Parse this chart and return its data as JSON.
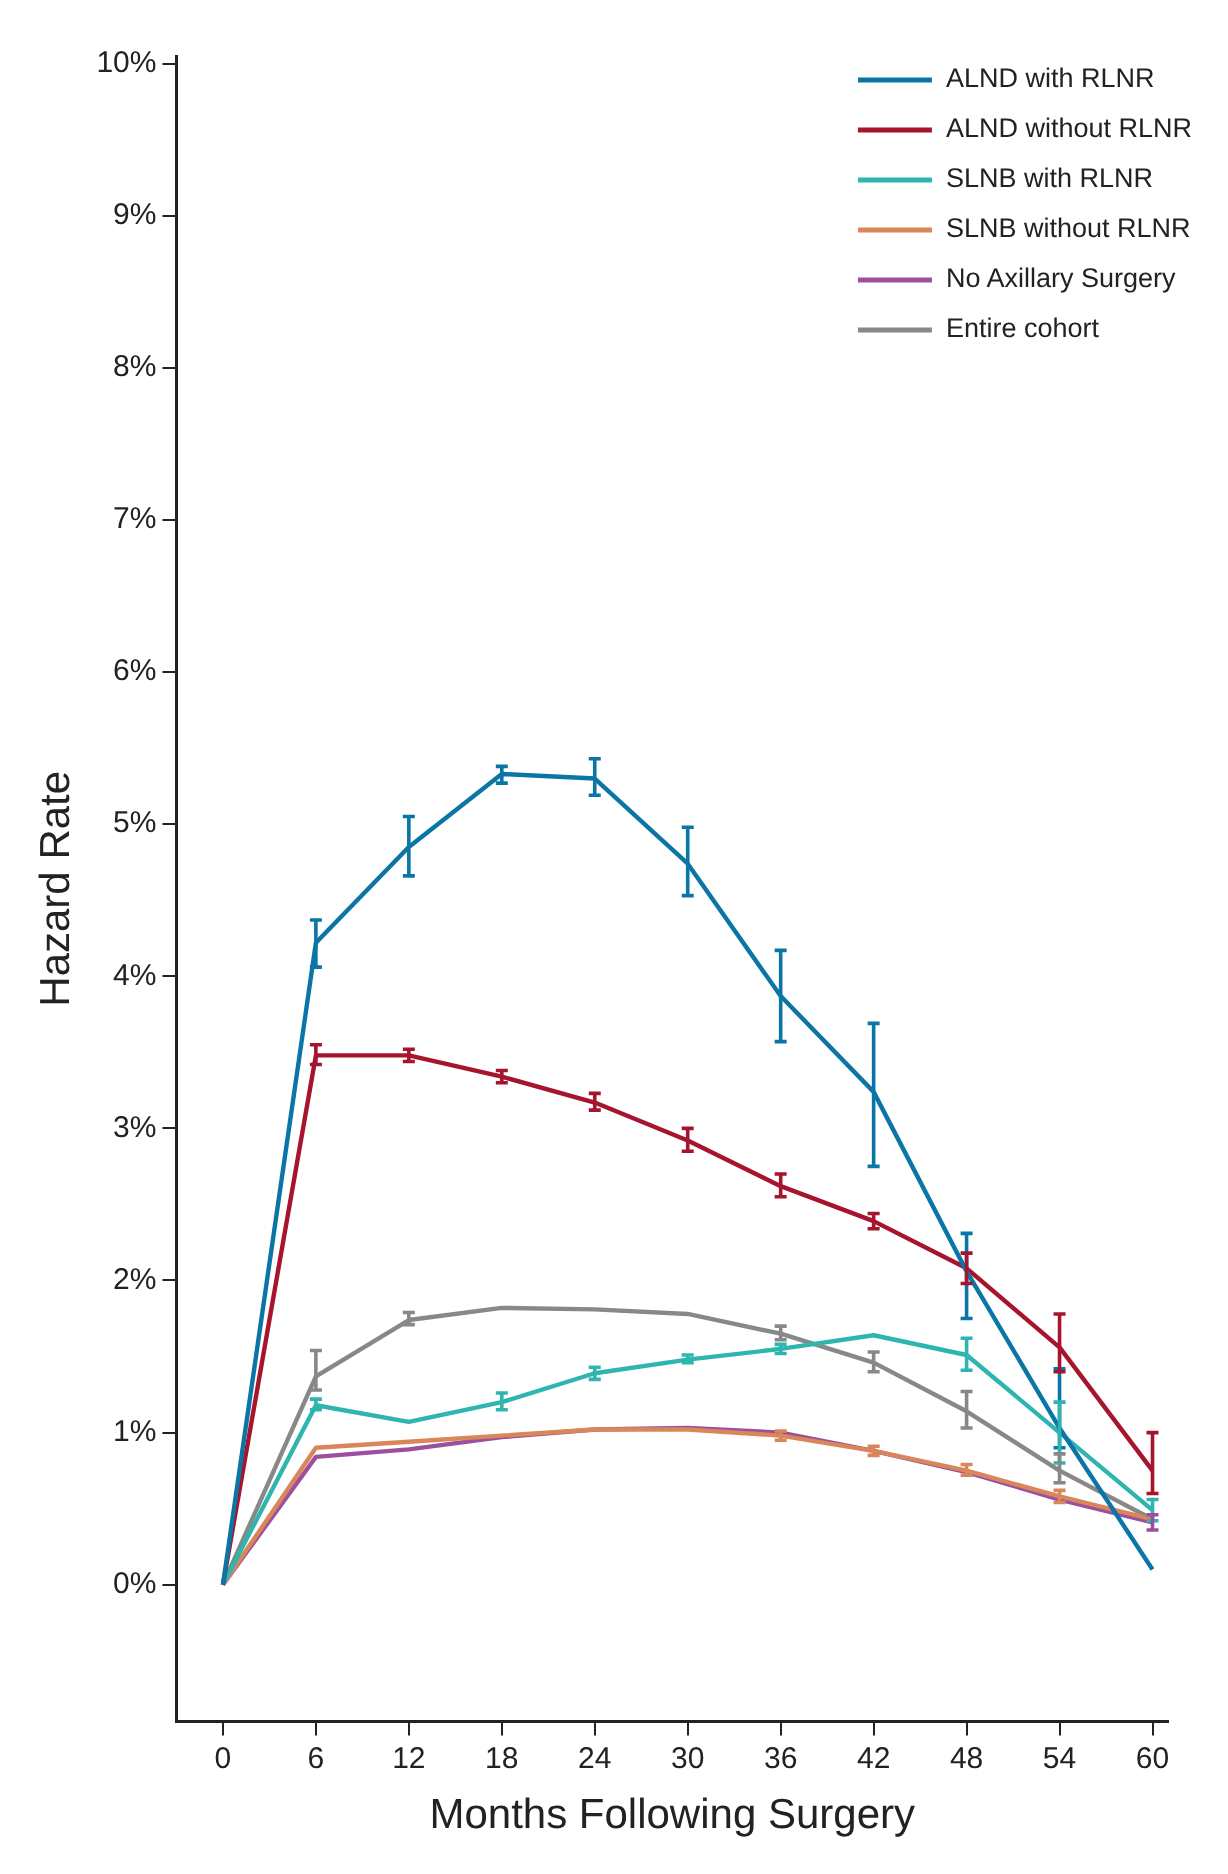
{
  "chart_data": {
    "type": "line",
    "xlabel": "Months Following Surgery",
    "ylabel": "Hazard Rate",
    "x": [
      0,
      6,
      12,
      18,
      24,
      30,
      36,
      42,
      48,
      54,
      60
    ],
    "xlim": [
      -3,
      61
    ],
    "xticks": [
      0,
      6,
      12,
      18,
      24,
      30,
      36,
      42,
      48,
      54,
      60
    ],
    "ylim": [
      -0.9,
      10.05
    ],
    "yticks": [
      {
        "value": 0,
        "label": "0%"
      },
      {
        "value": 1,
        "label": "1%"
      },
      {
        "value": 2,
        "label": "2%"
      },
      {
        "value": 3,
        "label": "3%"
      },
      {
        "value": 4,
        "label": "4%"
      },
      {
        "value": 5,
        "label": "5%"
      },
      {
        "value": 6,
        "label": "6%"
      },
      {
        "value": 7,
        "label": "7%"
      },
      {
        "value": 8,
        "label": "8%"
      },
      {
        "value": 9,
        "label": "9%"
      },
      {
        "value": 10,
        "label": "10%"
      }
    ],
    "grid": false,
    "legend": "top right",
    "marker": "none",
    "line_style": "solid",
    "series": [
      {
        "name": "ALND with RLNR",
        "color": "#0b76a6",
        "values": [
          0,
          4.22,
          4.85,
          5.33,
          5.3,
          4.74,
          3.87,
          3.24,
          2.06,
          1.03,
          0.1
        ],
        "errors": [
          null,
          [
            4.06,
            4.37
          ],
          [
            4.66,
            5.05
          ],
          [
            5.27,
            5.38
          ],
          [
            5.19,
            5.43
          ],
          [
            4.53,
            4.98
          ],
          [
            3.57,
            4.17
          ],
          [
            2.75,
            3.69
          ],
          [
            1.75,
            2.31
          ],
          [
            0.9,
            1.42
          ],
          null
        ]
      },
      {
        "name": "ALND without RLNR",
        "color": "#a6142e",
        "values": [
          0,
          3.48,
          3.48,
          3.34,
          3.17,
          2.92,
          2.62,
          2.39,
          2.08,
          1.56,
          0.75
        ],
        "errors": [
          null,
          [
            3.42,
            3.55
          ],
          [
            3.44,
            3.52
          ],
          [
            3.3,
            3.38
          ],
          [
            3.12,
            3.23
          ],
          [
            2.85,
            3.0
          ],
          [
            2.55,
            2.7
          ],
          [
            2.34,
            2.44
          ],
          [
            1.98,
            2.18
          ],
          [
            1.4,
            1.78
          ],
          [
            0.6,
            1.0
          ]
        ]
      },
      {
        "name": "SLNB with RLNR",
        "color": "#2fb5b0",
        "values": [
          0,
          1.18,
          1.07,
          1.2,
          1.39,
          1.48,
          1.55,
          1.64,
          1.51,
          1.0,
          0.49
        ],
        "errors": [
          null,
          [
            1.15,
            1.22
          ],
          null,
          [
            1.15,
            1.26
          ],
          [
            1.35,
            1.43
          ],
          [
            1.46,
            1.51
          ],
          [
            1.52,
            1.58
          ],
          null,
          [
            1.41,
            1.62
          ],
          [
            0.8,
            1.2
          ],
          [
            0.42,
            0.56
          ]
        ]
      },
      {
        "name": "SLNB without RLNR",
        "color": "#d9865a",
        "values": [
          0,
          0.9,
          0.94,
          0.98,
          1.02,
          1.02,
          0.98,
          0.88,
          0.75,
          0.58,
          0.43
        ],
        "errors": [
          null,
          null,
          null,
          null,
          null,
          null,
          [
            0.95,
            1.01
          ],
          [
            0.85,
            0.91
          ],
          [
            0.72,
            0.79
          ],
          [
            0.54,
            0.62
          ],
          null
        ]
      },
      {
        "name": "No Axillary Surgery",
        "color": "#9b4f9e",
        "values": [
          0,
          0.84,
          0.89,
          0.97,
          1.02,
          1.03,
          1.0,
          0.88,
          0.74,
          0.56,
          0.41
        ],
        "errors": [
          null,
          null,
          null,
          null,
          null,
          null,
          null,
          null,
          null,
          null,
          [
            0.36,
            0.46
          ]
        ]
      },
      {
        "name": "Entire cohort",
        "color": "#888888",
        "values": [
          0,
          1.37,
          1.74,
          1.82,
          1.81,
          1.78,
          1.65,
          1.46,
          1.14,
          0.75,
          0.43
        ],
        "errors": [
          null,
          [
            1.28,
            1.54
          ],
          [
            1.71,
            1.79
          ],
          null,
          null,
          null,
          [
            1.61,
            1.7
          ],
          [
            1.4,
            1.53
          ],
          [
            1.03,
            1.27
          ],
          [
            0.67,
            0.86
          ],
          null
        ]
      }
    ]
  }
}
